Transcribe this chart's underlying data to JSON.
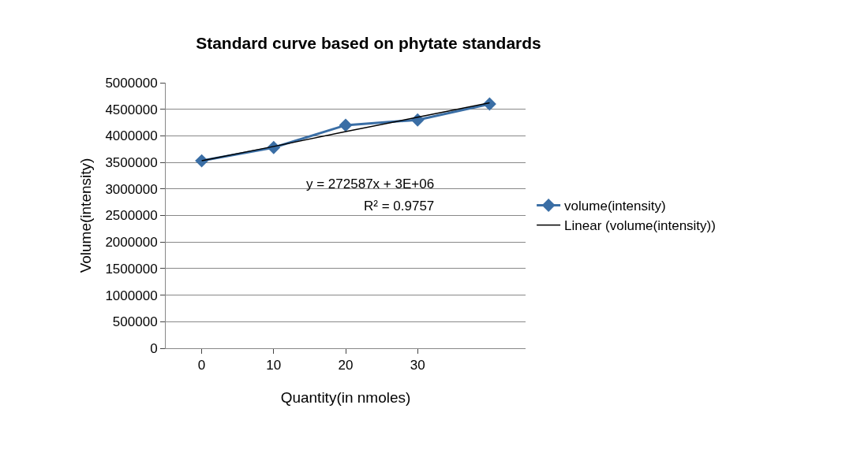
{
  "chart_data": {
    "type": "line",
    "title": "Standard curve based on phytate standards",
    "xlabel": "Quantity(in nmoles)",
    "ylabel": "Volume(intensity)",
    "categories": [
      "0",
      "10",
      "20",
      "30",
      null
    ],
    "series": [
      {
        "name": "volume(intensity)",
        "color": "#3a6ea5",
        "marker": "diamond",
        "values": [
          3530000,
          3780000,
          4200000,
          4300000,
          4600000
        ]
      },
      {
        "name": "Linear (volume(intensity))",
        "type": "line",
        "color": "#000000",
        "marker": "none",
        "values": [
          3530000,
          3800000,
          4080000,
          4350000,
          4620000
        ]
      }
    ],
    "ylim": [
      0,
      5000000
    ],
    "yticks": [
      0,
      500000,
      1000000,
      1500000,
      2000000,
      2500000,
      3000000,
      3500000,
      4000000,
      4500000,
      5000000
    ],
    "grid": "y",
    "legend": "right",
    "annotations": [
      "y = 272587x + 3E+06",
      "R² = 0.9757"
    ]
  }
}
